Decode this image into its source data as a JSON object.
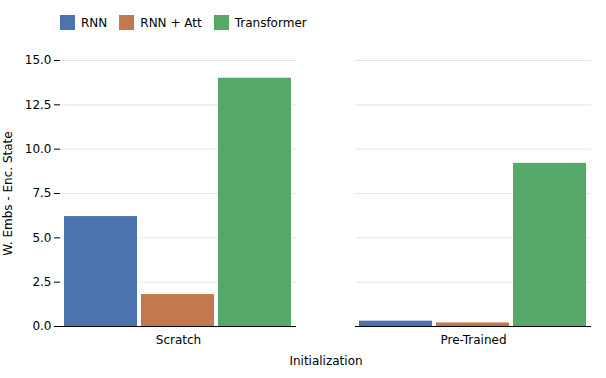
{
  "chart_data": {
    "type": "bar",
    "categories": [
      "Scratch",
      "Pre-Trained"
    ],
    "series": [
      {
        "name": "RNN",
        "color": "#4c72b0",
        "values": [
          6.2,
          0.3
        ]
      },
      {
        "name": "RNN + Att",
        "color": "#c4784e",
        "values": [
          1.8,
          0.2
        ]
      },
      {
        "name": "Transformer",
        "color": "#55a868",
        "values": [
          14.0,
          9.2
        ]
      }
    ],
    "xlabel": "Initialization",
    "ylabel": "W. Embs - Enc. State",
    "ylim": [
      0,
      15.0
    ],
    "yticks": [
      {
        "value": 0,
        "label": "0.0"
      },
      2.5,
      {
        "value": 5,
        "label": "5.0"
      },
      7.5,
      {
        "value": 10,
        "label": "10.0"
      },
      12.5,
      {
        "value": 15,
        "label": "15.0"
      }
    ],
    "grid": true,
    "legend": "upper left"
  }
}
